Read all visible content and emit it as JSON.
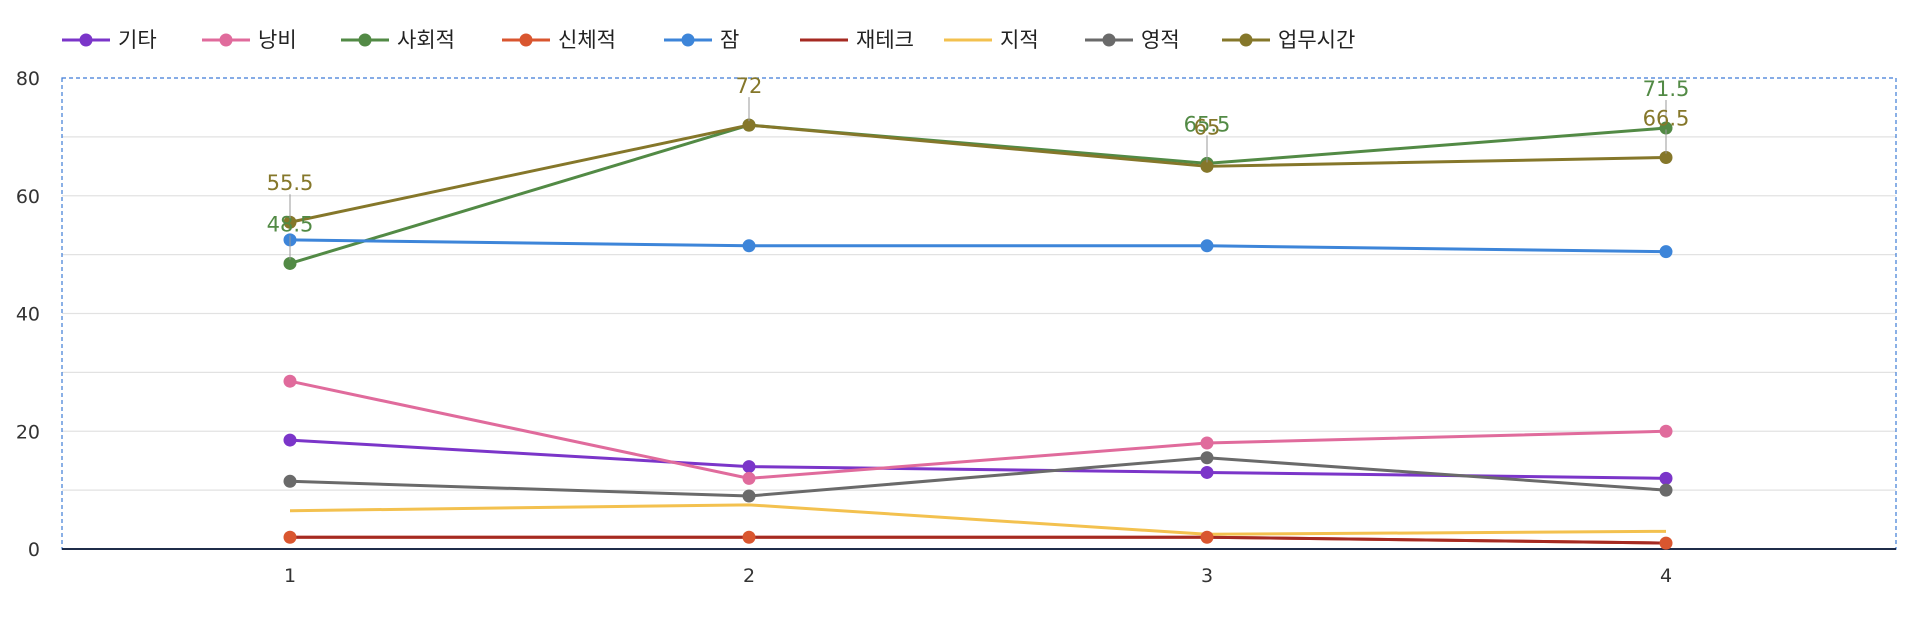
{
  "chart_data": {
    "type": "line",
    "x": [
      1,
      2,
      3,
      4
    ],
    "ylim": [
      0,
      80
    ],
    "yticks": [
      0,
      20,
      40,
      60,
      80
    ],
    "grid": true,
    "legend_position": "top-left",
    "series": [
      {
        "name": "기타",
        "color": "#7b35c9",
        "values": [
          18.5,
          14,
          13,
          12
        ],
        "markers": true
      },
      {
        "name": "낭비",
        "color": "#e06b9c",
        "values": [
          28.5,
          12,
          18,
          20
        ],
        "markers": true
      },
      {
        "name": "사회적",
        "color": "#528a45",
        "values": [
          48.5,
          72,
          65.5,
          71.5
        ],
        "markers": true,
        "labels": [
          "48.5",
          "",
          "65.5",
          "71.5"
        ]
      },
      {
        "name": "신체적",
        "color": "#d9562f",
        "values": [
          2,
          2,
          2,
          1
        ],
        "markers": true
      },
      {
        "name": "잠",
        "color": "#3d85d9",
        "values": [
          52.5,
          51.5,
          51.5,
          50.5
        ],
        "markers": true
      },
      {
        "name": "재테크",
        "color": "#a52a22",
        "values": [
          2,
          2,
          2,
          1
        ],
        "markers": false
      },
      {
        "name": "지적",
        "color": "#f3c14f",
        "values": [
          6.5,
          7.5,
          2.5,
          3
        ],
        "markers": false
      },
      {
        "name": "영적",
        "color": "#6a6a6a",
        "values": [
          11.5,
          9,
          15.5,
          10
        ],
        "markers": true
      },
      {
        "name": "업무시간",
        "color": "#85772a",
        "values": [
          55.5,
          72,
          65,
          66.5
        ],
        "markers": true,
        "labels": [
          "55.5",
          "72",
          "65",
          "66.5"
        ]
      }
    ]
  }
}
